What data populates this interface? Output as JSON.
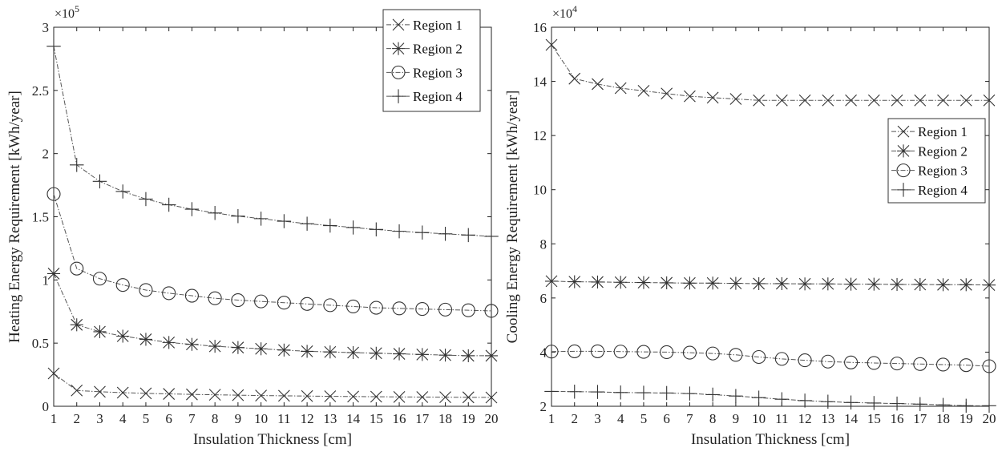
{
  "chart_data": [
    {
      "type": "line",
      "xlabel": "Insulation Thickness [cm]",
      "ylabel": "Heating Energy Requirement [kWh/year]",
      "exponent_label": "×10",
      "exponent_power": "5",
      "xlim": [
        1,
        20
      ],
      "ylim": [
        0,
        3
      ],
      "xticks": [
        1,
        2,
        3,
        4,
        5,
        6,
        7,
        8,
        9,
        10,
        11,
        12,
        13,
        14,
        15,
        16,
        17,
        18,
        19,
        20
      ],
      "yticks": [
        0,
        0.5,
        1,
        1.5,
        2,
        2.5,
        3
      ],
      "ytick_labels": [
        "0",
        "0.5",
        "1",
        "1.5",
        "2",
        "2.5",
        "3"
      ],
      "grid": false,
      "legend_position": "top-right",
      "x": [
        1,
        2,
        3,
        4,
        5,
        6,
        7,
        8,
        9,
        10,
        11,
        12,
        13,
        14,
        15,
        16,
        17,
        18,
        19,
        20
      ],
      "series": [
        {
          "name": "Region 1",
          "marker": "x",
          "values": [
            0.26,
            0.125,
            0.115,
            0.108,
            0.102,
            0.098,
            0.094,
            0.091,
            0.088,
            0.085,
            0.083,
            0.081,
            0.079,
            0.077,
            0.076,
            0.074,
            0.073,
            0.072,
            0.071,
            0.07
          ]
        },
        {
          "name": "Region 2",
          "marker": "star",
          "values": [
            1.05,
            0.645,
            0.59,
            0.555,
            0.53,
            0.505,
            0.49,
            0.475,
            0.465,
            0.455,
            0.445,
            0.435,
            0.43,
            0.425,
            0.42,
            0.415,
            0.41,
            0.405,
            0.4,
            0.4
          ]
        },
        {
          "name": "Region 3",
          "marker": "circle",
          "values": [
            1.68,
            1.09,
            1.01,
            0.96,
            0.92,
            0.895,
            0.875,
            0.855,
            0.84,
            0.83,
            0.82,
            0.81,
            0.8,
            0.79,
            0.78,
            0.775,
            0.77,
            0.765,
            0.76,
            0.755
          ]
        },
        {
          "name": "Region 4",
          "marker": "plus",
          "values": [
            2.85,
            1.91,
            1.78,
            1.7,
            1.64,
            1.595,
            1.56,
            1.53,
            1.505,
            1.485,
            1.465,
            1.445,
            1.43,
            1.415,
            1.4,
            1.385,
            1.375,
            1.365,
            1.355,
            1.345
          ]
        }
      ]
    },
    {
      "type": "line",
      "xlabel": "Insulation Thickness [cm]",
      "ylabel": "Cooling Energy Requirement [kWh/year]",
      "exponent_label": "×10",
      "exponent_power": "4",
      "xlim": [
        1,
        20
      ],
      "ylim": [
        2,
        16
      ],
      "xticks": [
        1,
        2,
        3,
        4,
        5,
        6,
        7,
        8,
        9,
        10,
        11,
        12,
        13,
        14,
        15,
        16,
        17,
        18,
        19,
        20
      ],
      "yticks": [
        2,
        4,
        6,
        8,
        10,
        12,
        14,
        16
      ],
      "ytick_labels": [
        "2",
        "4",
        "6",
        "8",
        "10",
        "12",
        "14",
        "16"
      ],
      "grid": false,
      "legend_position": "right",
      "x": [
        1,
        2,
        3,
        4,
        5,
        6,
        7,
        8,
        9,
        10,
        11,
        12,
        13,
        14,
        15,
        16,
        17,
        18,
        19,
        20
      ],
      "series": [
        {
          "name": "Region 1",
          "marker": "x",
          "values": [
            15.35,
            14.1,
            13.9,
            13.75,
            13.65,
            13.55,
            13.45,
            13.4,
            13.35,
            13.3,
            13.3,
            13.3,
            13.3,
            13.3,
            13.3,
            13.3,
            13.3,
            13.3,
            13.3,
            13.3
          ]
        },
        {
          "name": "Region 2",
          "marker": "star",
          "values": [
            6.62,
            6.6,
            6.59,
            6.58,
            6.57,
            6.56,
            6.55,
            6.55,
            6.54,
            6.53,
            6.53,
            6.52,
            6.52,
            6.51,
            6.51,
            6.5,
            6.5,
            6.49,
            6.49,
            6.48
          ]
        },
        {
          "name": "Region 3",
          "marker": "circle",
          "values": [
            4.02,
            4.03,
            4.03,
            4.02,
            4.01,
            4.0,
            3.98,
            3.95,
            3.9,
            3.82,
            3.75,
            3.7,
            3.65,
            3.62,
            3.6,
            3.58,
            3.56,
            3.54,
            3.52,
            3.48
          ]
        },
        {
          "name": "Region 4",
          "marker": "plus",
          "values": [
            2.55,
            2.54,
            2.53,
            2.51,
            2.5,
            2.49,
            2.47,
            2.43,
            2.38,
            2.32,
            2.26,
            2.21,
            2.17,
            2.14,
            2.12,
            2.1,
            2.08,
            2.05,
            2.02,
            2.02
          ]
        }
      ]
    }
  ]
}
